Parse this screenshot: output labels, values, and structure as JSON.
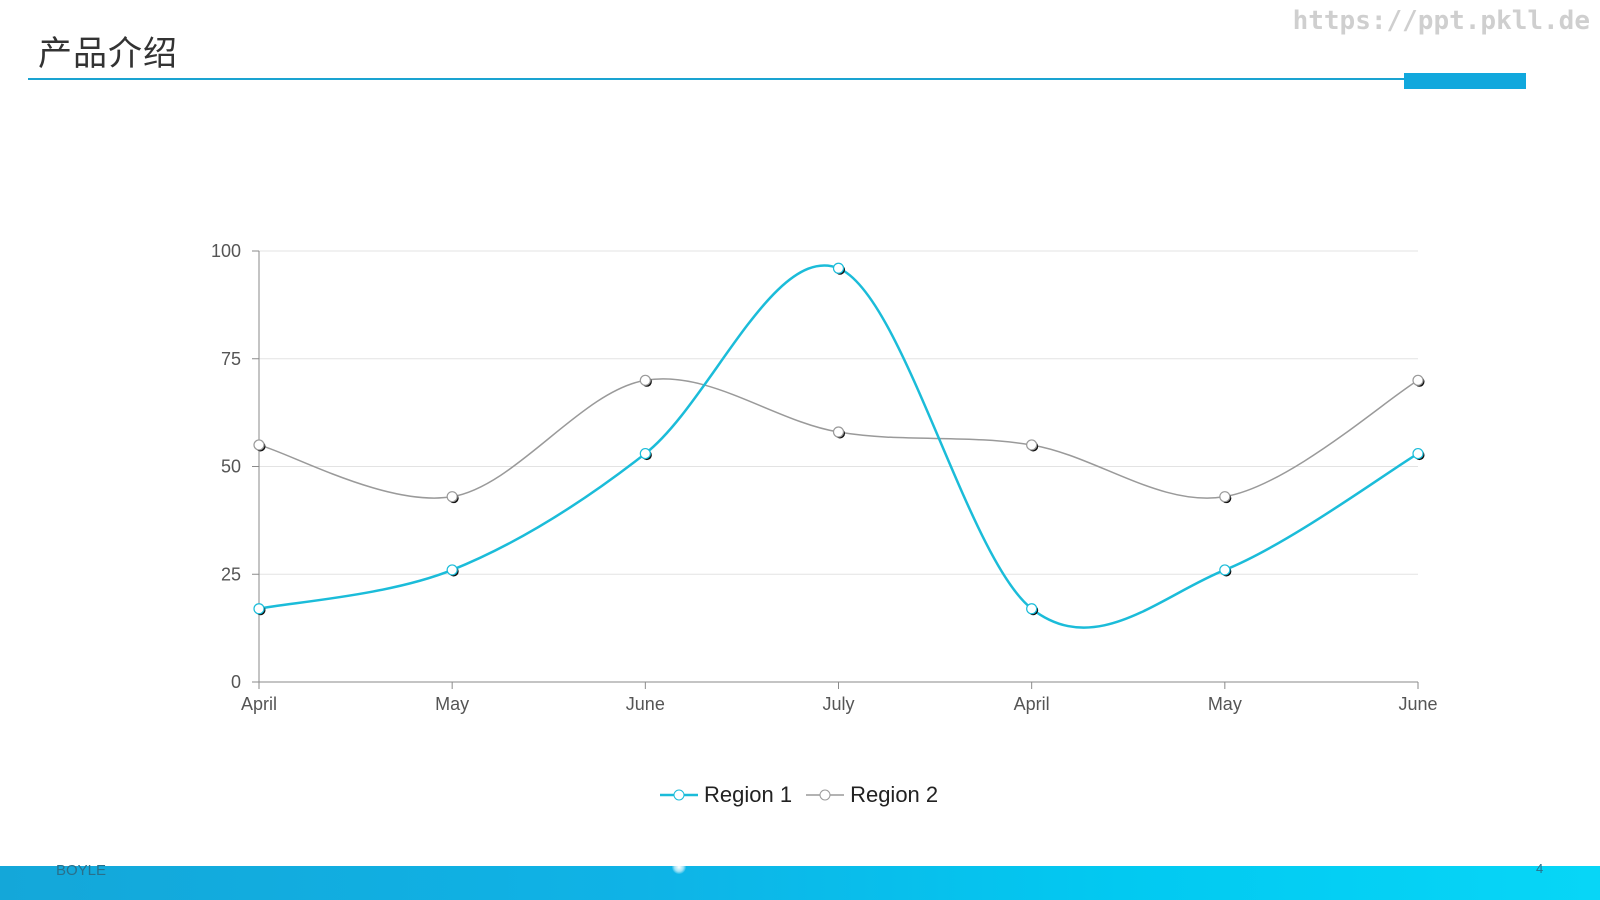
{
  "header": {
    "title": "产品介绍",
    "watermark": "https://ppt.pkll.de"
  },
  "footer": {
    "left_text": "BOYLE",
    "page_number": "4"
  },
  "colors": {
    "accent": "#11a8dd",
    "series1": "#1bbcd9",
    "series2": "#9a9a9a",
    "grid": "#e3e3e3",
    "axis": "#8a8a8a"
  },
  "chart_data": {
    "type": "line",
    "smooth": true,
    "categories": [
      "April",
      "May",
      "June",
      "July",
      "April",
      "May",
      "June"
    ],
    "series": [
      {
        "name": "Region 1",
        "values": [
          17,
          26,
          53,
          96,
          17,
          26,
          53
        ]
      },
      {
        "name": "Region 2",
        "values": [
          55,
          43,
          70,
          58,
          55,
          43,
          70
        ]
      }
    ],
    "ylim": [
      0,
      100
    ],
    "yticks": [
      0,
      25,
      50,
      75,
      100
    ],
    "grid": true,
    "legend_position": "bottom",
    "markers": "circle"
  }
}
